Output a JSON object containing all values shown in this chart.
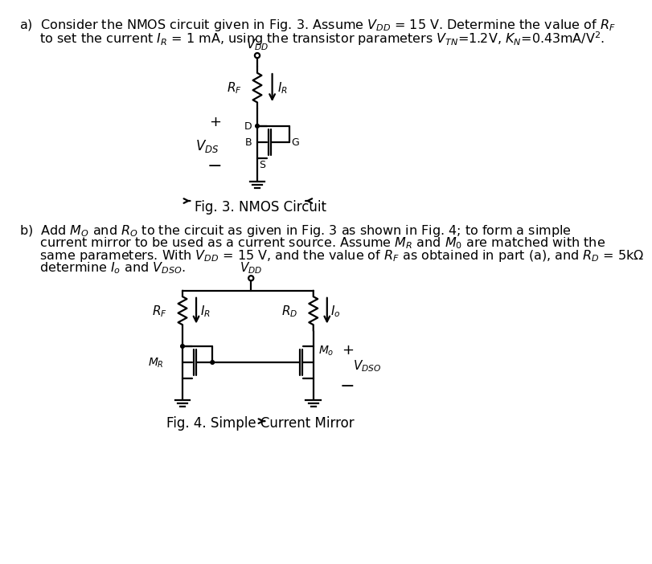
{
  "fig_width": 8.1,
  "fig_height": 8.87,
  "bg_color": "#ffffff",
  "text_color": "#000000",
  "part_a_line1": "a)  Consider the NMOS circuit given in Fig. 3. Assume $V_{DD}$ = 15 V. Determine the value of $R_F$",
  "part_a_line2": "     to set the current $I_R$ = 1 mA, using the transistor parameters $V_{TN}$=1.2V, $K_N$=0.43mA/V$^2$.",
  "fig3_caption": "Fig. 3. NMOS Circuit",
  "part_b_line1": "b)  Add $M_O$ and $R_O$ to the circuit as given in Fig. 3 as shown in Fig. 4; to form a simple",
  "part_b_line2": "     current mirror to be used as a current source. Assume $M_R$ and $M_0$ are matched with the",
  "part_b_line3": "     same parameters. With $V_{DD}$ = 15 V, and the value of $R_F$ as obtained in part (a), and $R_D$ = 5kΩ",
  "part_b_line4": "     determine $I_o$ and $V_{DSO}$.",
  "fig4_caption": "Fig. 4. Simple Current Mirror",
  "lw": 1.6
}
